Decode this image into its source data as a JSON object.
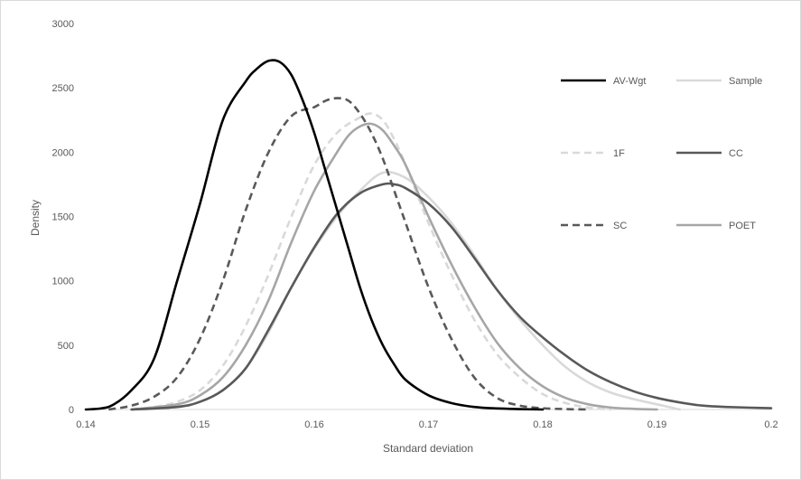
{
  "chart_data": {
    "type": "line",
    "title": "",
    "xlabel": "Standard deviation",
    "ylabel": "Density",
    "xlim": [
      0.14,
      0.2
    ],
    "ylim": [
      0,
      3000
    ],
    "x_ticks": [
      "0.14",
      "0.15",
      "0.16",
      "0.17",
      "0.18",
      "0.19",
      "0.2"
    ],
    "y_ticks": [
      "0",
      "500",
      "1000",
      "1500",
      "2000",
      "2500",
      "3000"
    ],
    "grid": false,
    "legend_position": "right",
    "series": [
      {
        "name": "AV-Wgt",
        "color": "#000000",
        "dash": "solid",
        "x": [
          0.14,
          0.142,
          0.144,
          0.146,
          0.148,
          0.15,
          0.152,
          0.154,
          0.155,
          0.156,
          0.157,
          0.158,
          0.159,
          0.16,
          0.161,
          0.162,
          0.163,
          0.164,
          0.165,
          0.166,
          0.167,
          0.168,
          0.17,
          0.172,
          0.174,
          0.176,
          0.178,
          0.18
        ],
        "y": [
          0,
          20,
          150,
          400,
          1000,
          1600,
          2250,
          2550,
          2650,
          2710,
          2700,
          2600,
          2400,
          2150,
          1850,
          1550,
          1250,
          950,
          700,
          500,
          350,
          230,
          110,
          50,
          20,
          8,
          3,
          0
        ]
      },
      {
        "name": "Sample",
        "color": "#d9d9d9",
        "dash": "solid",
        "x": [
          0.144,
          0.148,
          0.15,
          0.152,
          0.154,
          0.156,
          0.158,
          0.16,
          0.162,
          0.164,
          0.166,
          0.168,
          0.17,
          0.172,
          0.174,
          0.176,
          0.178,
          0.18,
          0.182,
          0.184,
          0.186,
          0.188,
          0.19,
          0.192
        ],
        "y": [
          0,
          20,
          60,
          150,
          320,
          600,
          950,
          1250,
          1500,
          1700,
          1840,
          1800,
          1650,
          1450,
          1200,
          930,
          700,
          500,
          330,
          210,
          130,
          80,
          40,
          0
        ]
      },
      {
        "name": "1F",
        "color": "#d9d9d9",
        "dash": "dashed",
        "x": [
          0.144,
          0.146,
          0.148,
          0.15,
          0.152,
          0.154,
          0.156,
          0.158,
          0.16,
          0.162,
          0.164,
          0.165,
          0.166,
          0.167,
          0.168,
          0.17,
          0.172,
          0.174,
          0.176,
          0.178,
          0.18,
          0.182,
          0.184,
          0.186
        ],
        "y": [
          0,
          20,
          60,
          150,
          340,
          650,
          1050,
          1500,
          1900,
          2150,
          2270,
          2300,
          2250,
          2100,
          1900,
          1450,
          1050,
          700,
          430,
          250,
          120,
          50,
          15,
          0
        ]
      },
      {
        "name": "CC",
        "color": "#595959",
        "dash": "solid",
        "x": [
          0.144,
          0.148,
          0.15,
          0.152,
          0.154,
          0.156,
          0.158,
          0.16,
          0.162,
          0.164,
          0.166,
          0.167,
          0.168,
          0.17,
          0.172,
          0.174,
          0.176,
          0.178,
          0.18,
          0.182,
          0.184,
          0.186,
          0.188,
          0.19,
          0.192,
          0.194,
          0.196,
          0.2
        ],
        "y": [
          0,
          20,
          60,
          150,
          320,
          620,
          950,
          1260,
          1520,
          1680,
          1750,
          1750,
          1720,
          1600,
          1420,
          1180,
          930,
          720,
          560,
          420,
          300,
          210,
          140,
          90,
          55,
          30,
          20,
          10
        ]
      },
      {
        "name": "SC",
        "color": "#595959",
        "dash": "dashed",
        "x": [
          0.142,
          0.144,
          0.146,
          0.148,
          0.15,
          0.152,
          0.154,
          0.156,
          0.158,
          0.16,
          0.161,
          0.162,
          0.163,
          0.164,
          0.165,
          0.166,
          0.167,
          0.168,
          0.17,
          0.172,
          0.174,
          0.176,
          0.178,
          0.18,
          0.182,
          0.184
        ],
        "y": [
          0,
          30,
          100,
          250,
          550,
          1000,
          1550,
          2000,
          2280,
          2350,
          2400,
          2420,
          2400,
          2300,
          2150,
          1950,
          1700,
          1450,
          950,
          550,
          250,
          90,
          30,
          10,
          3,
          0
        ]
      },
      {
        "name": "POET",
        "color": "#a6a6a6",
        "dash": "solid",
        "x": [
          0.144,
          0.148,
          0.15,
          0.152,
          0.154,
          0.156,
          0.158,
          0.16,
          0.162,
          0.163,
          0.164,
          0.165,
          0.166,
          0.167,
          0.168,
          0.17,
          0.172,
          0.174,
          0.176,
          0.178,
          0.18,
          0.182,
          0.184,
          0.186,
          0.188,
          0.19
        ],
        "y": [
          0,
          40,
          110,
          250,
          500,
          850,
          1300,
          1700,
          2000,
          2130,
          2200,
          2220,
          2170,
          2050,
          1900,
          1500,
          1130,
          800,
          520,
          320,
          180,
          90,
          40,
          15,
          5,
          0
        ]
      }
    ]
  }
}
